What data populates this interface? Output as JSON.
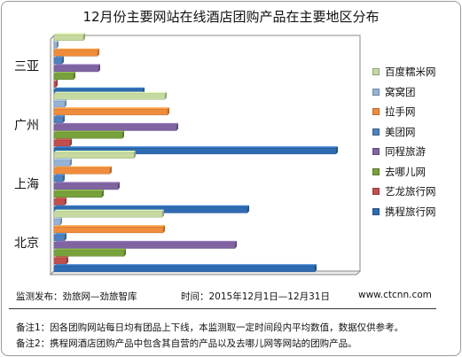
{
  "chart_data": {
    "type": "bar",
    "orientation": "horizontal",
    "title": "12月份主要网站在线酒店团购产品在主要地区分布",
    "categories": [
      "三亚",
      "广州",
      "上海",
      "北京"
    ],
    "series": [
      {
        "name": "百度糯米网",
        "color": "#c6d9a0",
        "values": [
          33,
          125,
          90,
          122
        ]
      },
      {
        "name": "窝窝团",
        "color": "#95b3d7",
        "values": [
          3,
          12,
          18,
          7
        ]
      },
      {
        "name": "拉手网",
        "color": "#f08c3c",
        "values": [
          49,
          128,
          63,
          123
        ]
      },
      {
        "name": "美团网",
        "color": "#4f81bd",
        "values": [
          9,
          10,
          10,
          12
        ]
      },
      {
        "name": "同程旅游",
        "color": "#8064a2",
        "values": [
          50,
          138,
          72,
          204
        ]
      },
      {
        "name": "去哪儿网",
        "color": "#77a13b",
        "values": [
          22,
          77,
          54,
          79
        ]
      },
      {
        "name": "艺龙旅行网",
        "color": "#c0504d",
        "values": [
          2,
          18,
          12,
          14
        ]
      },
      {
        "name": "携程旅行网",
        "color": "#2f6bb0",
        "values": [
          100,
          318,
          218,
          294
        ]
      }
    ],
    "xlim": [
      0,
      345
    ],
    "grid": false,
    "legend_position": "right"
  },
  "footer": {
    "source": "监测发布：劲旅网—劲旅智库",
    "period": "时间：2015年12月1日—12月31日",
    "site": "www.ctcnn.com",
    "note1": "备注1：因各团购网站每日均有团品上下线，本监测取一定时间段内平均数值，数据仅供参考。",
    "note2": "备注2：携程网酒店团购产品中包含其自营的产品以及去哪儿网等网站的团购产品。"
  }
}
